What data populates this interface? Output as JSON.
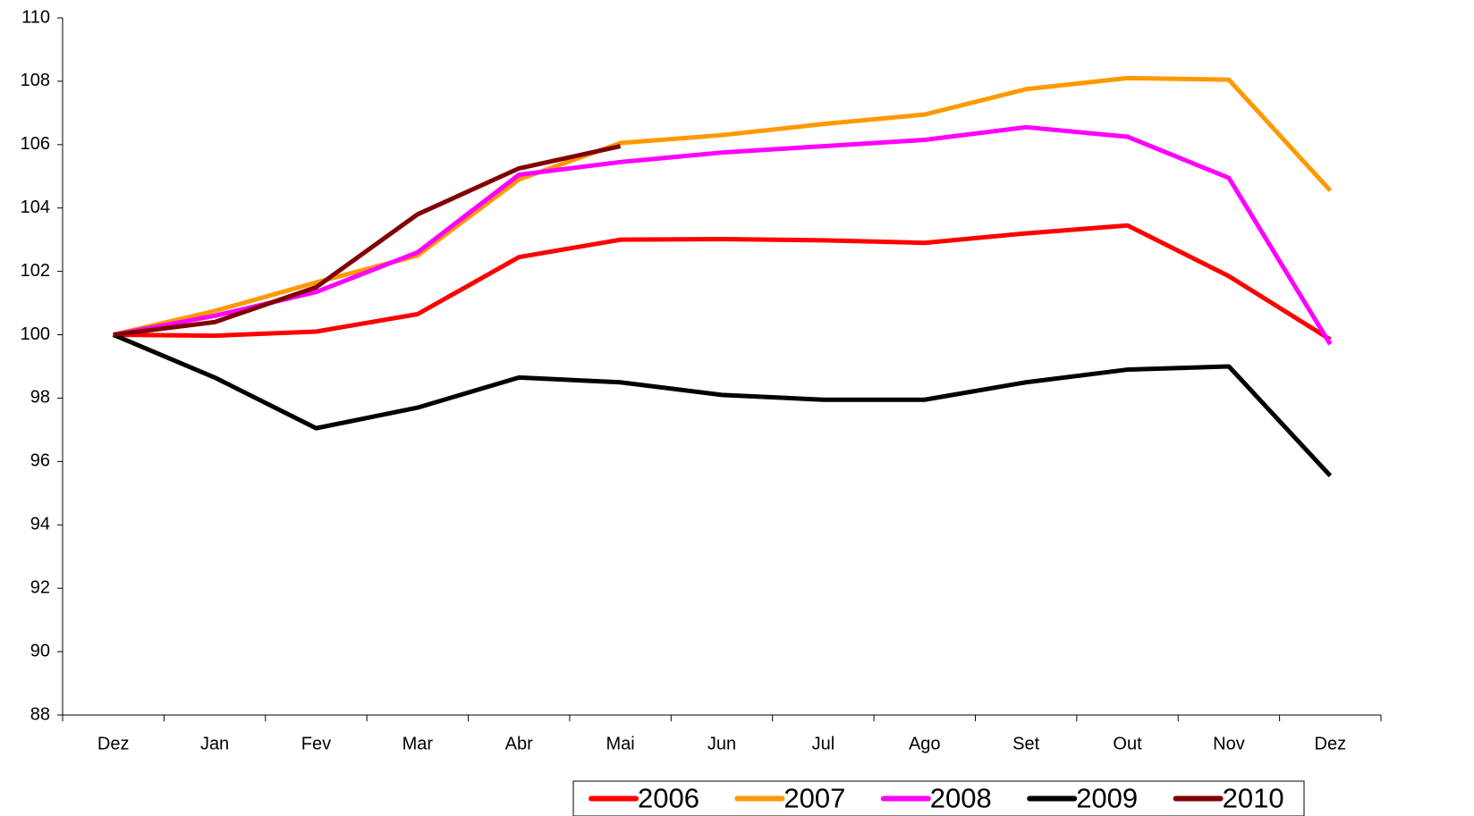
{
  "chart_data": {
    "type": "line",
    "categories": [
      "Dez",
      "Jan",
      "Fev",
      "Mar",
      "Abr",
      "Mai",
      "Jun",
      "Jul",
      "Ago",
      "Set",
      "Out",
      "Nov",
      "Dez"
    ],
    "series": [
      {
        "name": "2006",
        "color": "#ff0000",
        "values": [
          100,
          99.97,
          100.1,
          100.65,
          102.45,
          103.0,
          103.02,
          102.98,
          102.9,
          103.2,
          103.45,
          101.85,
          99.85
        ]
      },
      {
        "name": "2007",
        "color": "#ff9900",
        "values": [
          100,
          100.75,
          101.65,
          102.5,
          104.9,
          106.05,
          106.3,
          106.65,
          106.95,
          107.75,
          108.1,
          108.05,
          104.55
        ]
      },
      {
        "name": "2008",
        "color": "#ff00ff",
        "values": [
          100,
          100.6,
          101.35,
          102.6,
          105.05,
          105.45,
          105.75,
          105.95,
          106.15,
          106.55,
          106.25,
          104.95,
          99.7
        ]
      },
      {
        "name": "2009",
        "color": "#000000",
        "values": [
          100,
          98.65,
          97.05,
          97.7,
          98.65,
          98.5,
          98.1,
          97.95,
          97.95,
          98.5,
          98.9,
          99.0,
          95.55
        ]
      },
      {
        "name": "2010",
        "color": "#800000",
        "values": [
          100,
          100.4,
          101.5,
          103.8,
          105.25,
          105.95,
          null,
          null,
          null,
          null,
          null,
          null,
          null
        ]
      }
    ],
    "ylim": [
      88,
      110
    ],
    "yticks": [
      88,
      90,
      92,
      94,
      96,
      98,
      100,
      102,
      104,
      106,
      108,
      110
    ],
    "grid": false,
    "legend": "bottom"
  }
}
